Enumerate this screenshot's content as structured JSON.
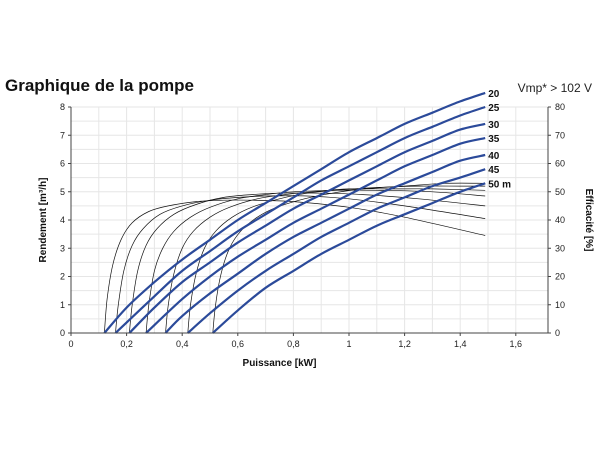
{
  "chart_data": {
    "type": "line",
    "title": "Graphique de la pompe",
    "subtitle": "Vmp* > 102 V",
    "xlabel": "Puissance [kW]",
    "ylabel": "Rendement [m³/h]",
    "y2label": "Efficacité [%]",
    "xlim": [
      0,
      1.7
    ],
    "ylim": [
      0,
      8
    ],
    "y2lim": [
      0,
      80
    ],
    "grid": true,
    "x_ticks": [
      "0",
      "0,2",
      "0,4",
      "0,6",
      "0,8",
      "1",
      "1,2",
      "1,4",
      "1,6"
    ],
    "y_ticks": [
      "0",
      "1",
      "2",
      "3",
      "4",
      "5",
      "6",
      "7",
      "8"
    ],
    "y2_ticks": [
      "0",
      "10",
      "20",
      "30",
      "40",
      "50",
      "60",
      "70",
      "80"
    ],
    "flow_series": [
      {
        "label": "20",
        "x": [
          0.12,
          0.2,
          0.3,
          0.4,
          0.5,
          0.6,
          0.7,
          0.8,
          0.9,
          1.0,
          1.1,
          1.2,
          1.3,
          1.4,
          1.49
        ],
        "values": [
          0,
          0.9,
          1.8,
          2.6,
          3.3,
          4.0,
          4.6,
          5.2,
          5.8,
          6.4,
          6.9,
          7.4,
          7.8,
          8.2,
          8.5
        ]
      },
      {
        "label": "25",
        "x": [
          0.16,
          0.3,
          0.4,
          0.5,
          0.6,
          0.7,
          0.8,
          0.9,
          1.0,
          1.1,
          1.2,
          1.3,
          1.4,
          1.49
        ],
        "values": [
          0,
          1.3,
          2.2,
          2.9,
          3.6,
          4.2,
          4.8,
          5.4,
          5.9,
          6.4,
          6.9,
          7.3,
          7.7,
          8.0
        ]
      },
      {
        "label": "30",
        "x": [
          0.21,
          0.3,
          0.4,
          0.5,
          0.6,
          0.7,
          0.8,
          0.9,
          1.0,
          1.1,
          1.2,
          1.3,
          1.4,
          1.49
        ],
        "values": [
          0,
          0.9,
          1.8,
          2.5,
          3.2,
          3.8,
          4.4,
          4.9,
          5.4,
          5.9,
          6.4,
          6.8,
          7.2,
          7.4
        ]
      },
      {
        "label": "35",
        "x": [
          0.27,
          0.4,
          0.5,
          0.6,
          0.7,
          0.8,
          0.9,
          1.0,
          1.1,
          1.2,
          1.3,
          1.4,
          1.49
        ],
        "values": [
          0,
          1.2,
          2.0,
          2.7,
          3.3,
          3.9,
          4.4,
          4.9,
          5.4,
          5.9,
          6.3,
          6.7,
          6.9
        ]
      },
      {
        "label": "40",
        "x": [
          0.34,
          0.4,
          0.5,
          0.6,
          0.7,
          0.8,
          0.9,
          1.0,
          1.1,
          1.2,
          1.3,
          1.4,
          1.49
        ],
        "values": [
          0,
          0.6,
          1.4,
          2.1,
          2.8,
          3.4,
          3.9,
          4.4,
          4.9,
          5.3,
          5.7,
          6.1,
          6.3
        ]
      },
      {
        "label": "45",
        "x": [
          0.42,
          0.5,
          0.6,
          0.7,
          0.8,
          0.9,
          1.0,
          1.1,
          1.2,
          1.3,
          1.4,
          1.49
        ],
        "values": [
          0,
          0.7,
          1.5,
          2.2,
          2.8,
          3.4,
          3.9,
          4.4,
          4.8,
          5.2,
          5.5,
          5.8
        ]
      },
      {
        "label": "50 m",
        "x": [
          0.51,
          0.6,
          0.7,
          0.8,
          0.9,
          1.0,
          1.1,
          1.2,
          1.3,
          1.4,
          1.49
        ],
        "values": [
          0,
          0.8,
          1.6,
          2.2,
          2.8,
          3.3,
          3.8,
          4.2,
          4.6,
          5.0,
          5.3
        ]
      }
    ],
    "efficiency_series": [
      {
        "head": "20",
        "x": [
          0.12,
          0.13,
          0.15,
          0.18,
          0.22,
          0.28,
          0.35,
          0.45,
          0.55,
          0.65,
          0.8,
          1.0,
          1.2,
          1.49
        ],
        "values": [
          0,
          12,
          24,
          33,
          39,
          43,
          45,
          46.5,
          47,
          47,
          46.5,
          44.5,
          41,
          34.5
        ]
      },
      {
        "head": "25",
        "x": [
          0.16,
          0.17,
          0.19,
          0.22,
          0.26,
          0.32,
          0.4,
          0.5,
          0.6,
          0.7,
          0.85,
          1.0,
          1.2,
          1.49
        ],
        "values": [
          0,
          10,
          22,
          31,
          37,
          42,
          45,
          47,
          48,
          48.5,
          48.5,
          47.5,
          45,
          40.5
        ]
      },
      {
        "head": "30",
        "x": [
          0.21,
          0.22,
          0.24,
          0.27,
          0.31,
          0.37,
          0.45,
          0.55,
          0.65,
          0.75,
          0.9,
          1.05,
          1.25,
          1.49
        ],
        "values": [
          0,
          10,
          22,
          31,
          37,
          42,
          45.5,
          48,
          49,
          49.5,
          49.5,
          49,
          47.5,
          45
        ]
      },
      {
        "head": "35",
        "x": [
          0.27,
          0.28,
          0.3,
          0.33,
          0.37,
          0.43,
          0.5,
          0.6,
          0.7,
          0.8,
          0.95,
          1.1,
          1.3,
          1.49
        ],
        "values": [
          0,
          10,
          22,
          30,
          36,
          41,
          44.5,
          47.5,
          49,
          50,
          50.5,
          50.5,
          50,
          48.5
        ]
      },
      {
        "head": "40",
        "x": [
          0.34,
          0.35,
          0.37,
          0.4,
          0.44,
          0.5,
          0.57,
          0.67,
          0.77,
          0.87,
          1.0,
          1.15,
          1.3,
          1.49
        ],
        "values": [
          0,
          10,
          21,
          30,
          36,
          41,
          44.5,
          47.5,
          49,
          50,
          51,
          51,
          51,
          50.5
        ]
      },
      {
        "head": "45",
        "x": [
          0.42,
          0.43,
          0.45,
          0.48,
          0.52,
          0.58,
          0.65,
          0.75,
          0.85,
          0.95,
          1.1,
          1.25,
          1.4,
          1.49
        ],
        "values": [
          0,
          10,
          21,
          30,
          36,
          41,
          44.5,
          47.5,
          49.5,
          50.5,
          51.5,
          52,
          52,
          52
        ]
      },
      {
        "head": "50 m",
        "x": [
          0.51,
          0.52,
          0.54,
          0.57,
          0.61,
          0.67,
          0.74,
          0.84,
          0.94,
          1.05,
          1.2,
          1.35,
          1.49
        ],
        "values": [
          0,
          10,
          21,
          30,
          36,
          41,
          44.5,
          47.5,
          49.5,
          51,
          52,
          53,
          53
        ]
      }
    ],
    "colors": {
      "flow": "#2b4a9a",
      "efficiency": "#111111",
      "grid": "#e6e6e6",
      "axis": "#444444"
    }
  }
}
